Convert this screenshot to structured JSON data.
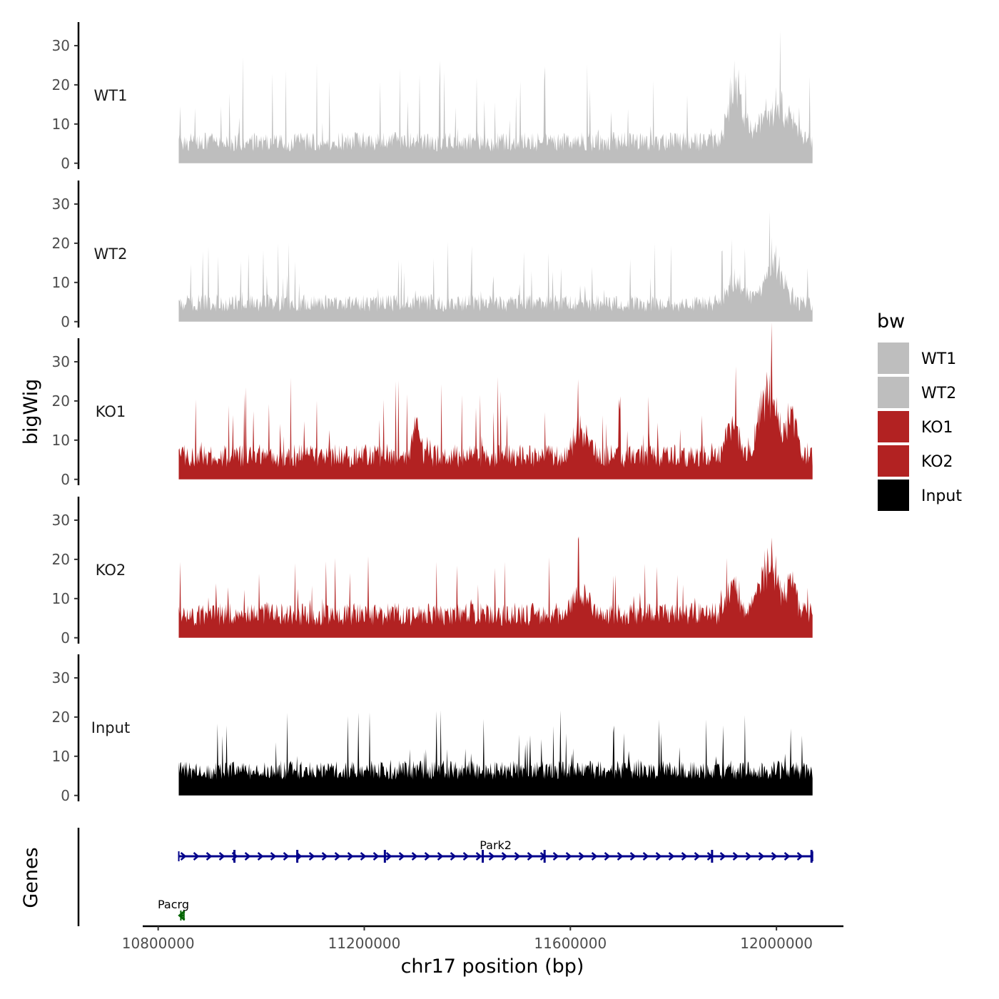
{
  "chart_data": {
    "type": "area",
    "chromosome": "chr17",
    "xlabel": "chr17 position (bp)",
    "ylabel_tracks": "bigWig",
    "ylabel_genes": "Genes",
    "x_range": [
      10770000,
      12130000
    ],
    "data_range": [
      10840000,
      12070000
    ],
    "x_ticks": [
      {
        "value": 10800000,
        "label": "10800000"
      },
      {
        "value": 11200000,
        "label": "11200000"
      },
      {
        "value": 11600000,
        "label": "11600000"
      },
      {
        "value": 12000000,
        "label": "12000000"
      }
    ],
    "ylim": [
      -1.5,
      36
    ],
    "y_ticks": [
      {
        "value": 0,
        "label": "0"
      },
      {
        "value": 10,
        "label": "10"
      },
      {
        "value": 20,
        "label": "20"
      },
      {
        "value": 30,
        "label": "30"
      }
    ],
    "tracks": [
      {
        "name": "WT1",
        "color": "#bebebe",
        "baseline": 3,
        "noise": 5,
        "spike_max": 20,
        "hotspots": [
          {
            "x": 11920000,
            "w": 18000,
            "amp": 20
          },
          {
            "x": 12000000,
            "w": 40000,
            "amp": 12
          }
        ]
      },
      {
        "name": "WT2",
        "color": "#bebebe",
        "baseline": 2.5,
        "noise": 4.5,
        "spike_max": 15,
        "hotspots": [
          {
            "x": 11920000,
            "w": 20000,
            "amp": 9
          },
          {
            "x": 11995000,
            "w": 25000,
            "amp": 16
          }
        ]
      },
      {
        "name": "KO1",
        "color": "#b22222",
        "baseline": 3,
        "noise": 6,
        "spike_max": 18,
        "hotspots": [
          {
            "x": 11300000,
            "w": 10000,
            "amp": 10
          },
          {
            "x": 11620000,
            "w": 20000,
            "amp": 9
          },
          {
            "x": 11915000,
            "w": 15000,
            "amp": 12
          },
          {
            "x": 11985000,
            "w": 25000,
            "amp": 22
          },
          {
            "x": 12030000,
            "w": 12000,
            "amp": 15
          }
        ]
      },
      {
        "name": "KO2",
        "color": "#b22222",
        "baseline": 3,
        "noise": 6,
        "spike_max": 17,
        "hotspots": [
          {
            "x": 11620000,
            "w": 20000,
            "amp": 7
          },
          {
            "x": 11915000,
            "w": 15000,
            "amp": 10
          },
          {
            "x": 11985000,
            "w": 25000,
            "amp": 18
          },
          {
            "x": 12030000,
            "w": 12000,
            "amp": 12
          }
        ]
      },
      {
        "name": "Input",
        "color": "#000000",
        "baseline": 4,
        "noise": 5,
        "spike_max": 15,
        "hotspots": []
      }
    ],
    "legend": {
      "title": "bw",
      "placement": "right",
      "entries": [
        {
          "label": "WT1",
          "color": "#bebebe"
        },
        {
          "label": "WT2",
          "color": "#bebebe"
        },
        {
          "label": "KO1",
          "color": "#b22222"
        },
        {
          "label": "KO2",
          "color": "#b22222"
        },
        {
          "label": "Input",
          "color": "#000000"
        }
      ]
    },
    "genes": [
      {
        "name": "Park2",
        "start": 10840000,
        "end": 12070000,
        "strand": "+",
        "color": "#00008b",
        "row": 0,
        "exons": [
          10948000,
          11070000,
          11240000,
          11430000,
          11550000,
          11875000,
          12068000
        ]
      },
      {
        "name": "Pacrg",
        "start": 10844000,
        "end": 10850000,
        "strand": "-",
        "color": "#006400",
        "row": 1,
        "exons": []
      }
    ]
  }
}
